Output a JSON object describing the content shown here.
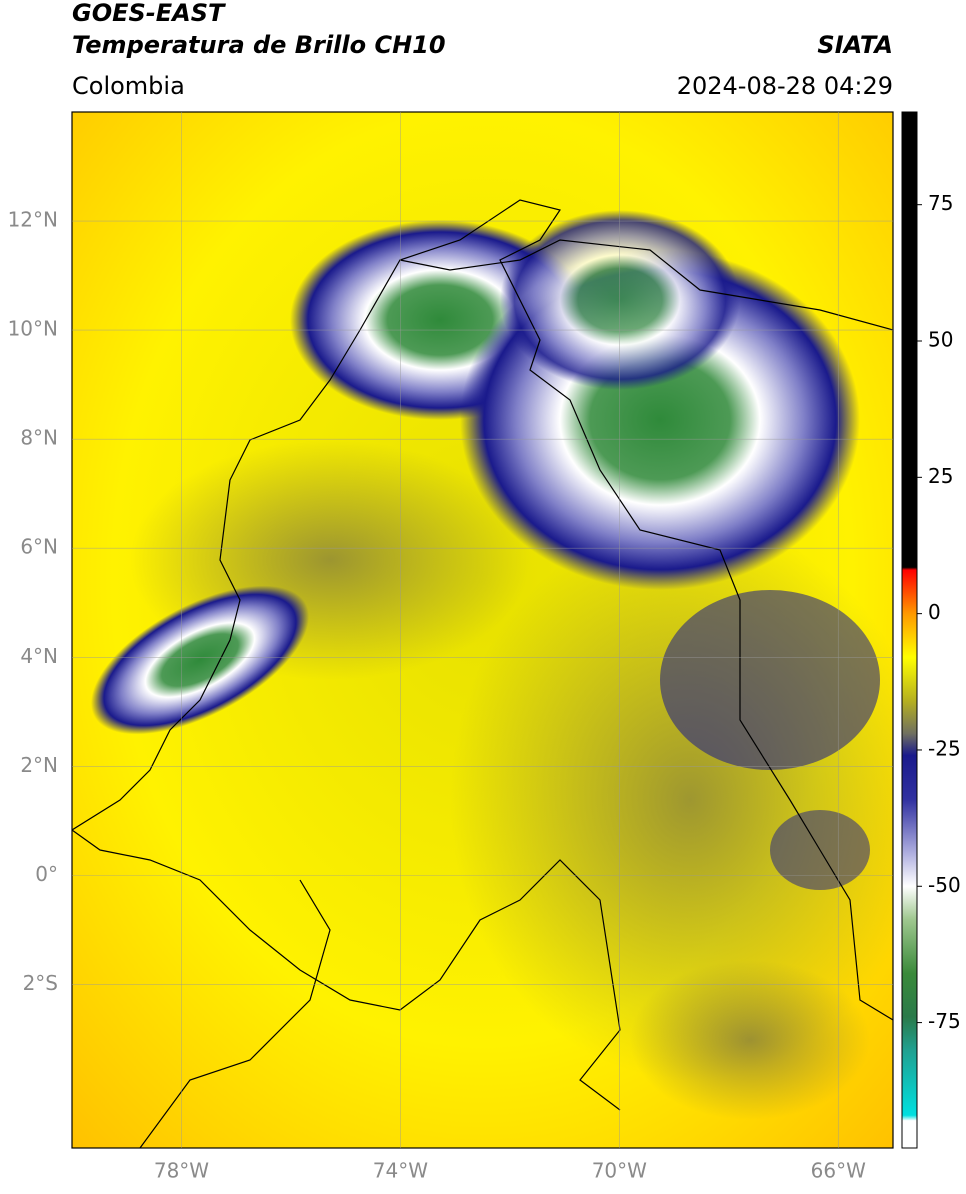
{
  "title": "GOES-EAST",
  "subtitle": "Temperatura de Brillo CH10",
  "source": "SIATA",
  "region": "Colombia",
  "timestamp": "2024-08-28 04:29",
  "map": {
    "xlim": [
      -80,
      -65
    ],
    "ylim": [
      -5,
      14
    ],
    "xticks": [
      {
        "value": -78,
        "label": "78°W"
      },
      {
        "value": -74,
        "label": "74°W"
      },
      {
        "value": -70,
        "label": "70°W"
      },
      {
        "value": -66,
        "label": "66°W"
      }
    ],
    "yticks": [
      {
        "value": 12,
        "label": "12°N"
      },
      {
        "value": 10,
        "label": "10°N"
      },
      {
        "value": 8,
        "label": "8°N"
      },
      {
        "value": 6,
        "label": "6°N"
      },
      {
        "value": 4,
        "label": "4°N"
      },
      {
        "value": 2,
        "label": "2°N"
      },
      {
        "value": 0,
        "label": "0°"
      },
      {
        "value": -2,
        "label": "2°S"
      }
    ],
    "grid": true
  },
  "colorbar": {
    "lim": [
      -98,
      92
    ],
    "ticks": [
      75,
      50,
      25,
      0,
      -25,
      -50,
      -75
    ],
    "stops": [
      {
        "value": 92,
        "color": "#000000"
      },
      {
        "value": 8.5,
        "color": "#000000"
      },
      {
        "value": 8,
        "color": "#ff0000"
      },
      {
        "value": 0,
        "color": "#ff9900"
      },
      {
        "value": -8,
        "color": "#ffff00"
      },
      {
        "value": -16,
        "color": "#b5b020"
      },
      {
        "value": -22,
        "color": "#707060"
      },
      {
        "value": -26,
        "color": "#1a1a8c"
      },
      {
        "value": -34,
        "color": "#3030a0"
      },
      {
        "value": -44,
        "color": "#b0b0e0"
      },
      {
        "value": -50,
        "color": "#ffffff"
      },
      {
        "value": -56,
        "color": "#a0c890"
      },
      {
        "value": -66,
        "color": "#3a8a3a"
      },
      {
        "value": -74,
        "color": "#2a7a4a"
      },
      {
        "value": -80,
        "color": "#20a090"
      },
      {
        "value": -92,
        "color": "#00e0e0"
      },
      {
        "value": -93,
        "color": "#ffffff"
      },
      {
        "value": -98,
        "color": "#ffffff"
      }
    ]
  }
}
